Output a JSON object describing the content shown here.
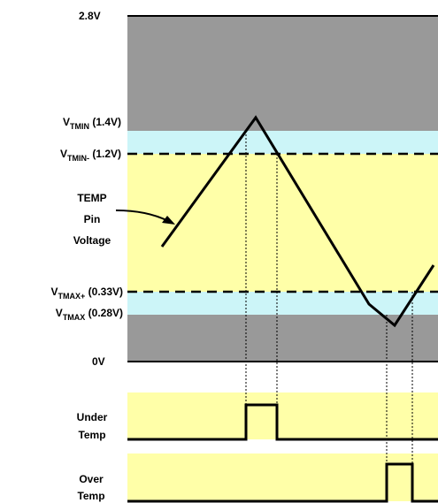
{
  "colors": {
    "gray_band": "#999999",
    "cyan_band": "#ccf5f8",
    "yellow_band": "#ffffa8",
    "line": "#000000",
    "background": "#ffffff"
  },
  "levels": {
    "top": {
      "text": "2.8V",
      "value": 2.8
    },
    "tmin": {
      "main": "V",
      "sub": "TMIN",
      "suffix": " (1.4V)",
      "value": 1.4
    },
    "tmin_minus": {
      "main": "V",
      "sub": "TMIN-",
      "suffix": " (1.2V)",
      "value": 1.2
    },
    "tmax_plus": {
      "main": "V",
      "sub": "TMAX+",
      "suffix": " (0.33V)",
      "value": 0.33
    },
    "tmax": {
      "main": "V",
      "sub": "TMAX",
      "suffix": " (0.28V)",
      "value": 0.28
    },
    "zero": {
      "text": "0V",
      "value": 0
    }
  },
  "pin_label": {
    "line1": "TEMP",
    "line2": "Pin",
    "line3": "Voltage"
  },
  "under_temp": {
    "line1": "Under",
    "line2": "Temp"
  },
  "over_temp": {
    "line1": "Over",
    "line2": "Temp"
  }
}
